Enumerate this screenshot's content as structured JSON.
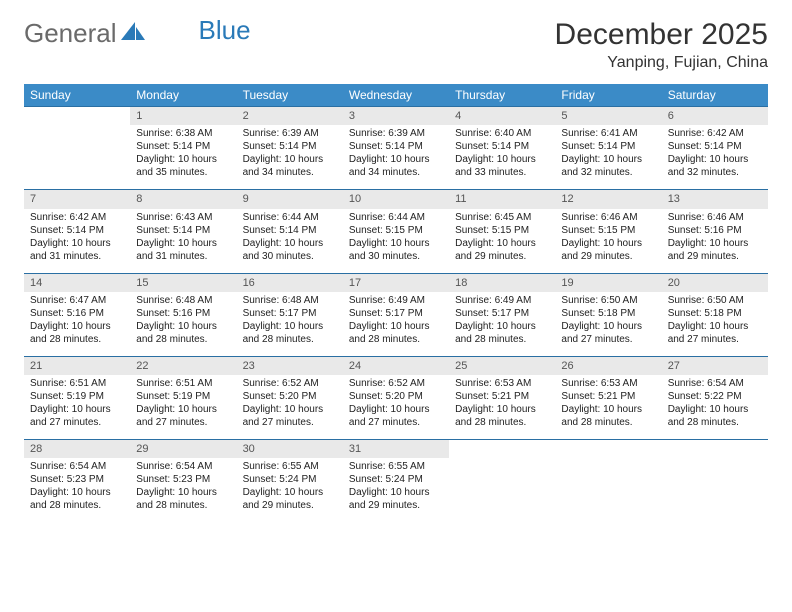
{
  "logo": {
    "text1": "General",
    "text2": "Blue",
    "shape_color": "#2a7ab8"
  },
  "header": {
    "month_title": "December 2025",
    "location": "Yanping, Fujian, China"
  },
  "colors": {
    "header_bg": "#3b8bc7",
    "header_text": "#ffffff",
    "row_border": "#2a6fa3",
    "daynum_bg": "#e9e9e9",
    "daynum_text": "#555555",
    "body_text": "#222222"
  },
  "day_names": [
    "Sunday",
    "Monday",
    "Tuesday",
    "Wednesday",
    "Thursday",
    "Friday",
    "Saturday"
  ],
  "weeks": [
    [
      {
        "n": "",
        "sr": "",
        "ss": "",
        "dl": ""
      },
      {
        "n": "1",
        "sr": "Sunrise: 6:38 AM",
        "ss": "Sunset: 5:14 PM",
        "dl": "Daylight: 10 hours and 35 minutes."
      },
      {
        "n": "2",
        "sr": "Sunrise: 6:39 AM",
        "ss": "Sunset: 5:14 PM",
        "dl": "Daylight: 10 hours and 34 minutes."
      },
      {
        "n": "3",
        "sr": "Sunrise: 6:39 AM",
        "ss": "Sunset: 5:14 PM",
        "dl": "Daylight: 10 hours and 34 minutes."
      },
      {
        "n": "4",
        "sr": "Sunrise: 6:40 AM",
        "ss": "Sunset: 5:14 PM",
        "dl": "Daylight: 10 hours and 33 minutes."
      },
      {
        "n": "5",
        "sr": "Sunrise: 6:41 AM",
        "ss": "Sunset: 5:14 PM",
        "dl": "Daylight: 10 hours and 32 minutes."
      },
      {
        "n": "6",
        "sr": "Sunrise: 6:42 AM",
        "ss": "Sunset: 5:14 PM",
        "dl": "Daylight: 10 hours and 32 minutes."
      }
    ],
    [
      {
        "n": "7",
        "sr": "Sunrise: 6:42 AM",
        "ss": "Sunset: 5:14 PM",
        "dl": "Daylight: 10 hours and 31 minutes."
      },
      {
        "n": "8",
        "sr": "Sunrise: 6:43 AM",
        "ss": "Sunset: 5:14 PM",
        "dl": "Daylight: 10 hours and 31 minutes."
      },
      {
        "n": "9",
        "sr": "Sunrise: 6:44 AM",
        "ss": "Sunset: 5:14 PM",
        "dl": "Daylight: 10 hours and 30 minutes."
      },
      {
        "n": "10",
        "sr": "Sunrise: 6:44 AM",
        "ss": "Sunset: 5:15 PM",
        "dl": "Daylight: 10 hours and 30 minutes."
      },
      {
        "n": "11",
        "sr": "Sunrise: 6:45 AM",
        "ss": "Sunset: 5:15 PM",
        "dl": "Daylight: 10 hours and 29 minutes."
      },
      {
        "n": "12",
        "sr": "Sunrise: 6:46 AM",
        "ss": "Sunset: 5:15 PM",
        "dl": "Daylight: 10 hours and 29 minutes."
      },
      {
        "n": "13",
        "sr": "Sunrise: 6:46 AM",
        "ss": "Sunset: 5:16 PM",
        "dl": "Daylight: 10 hours and 29 minutes."
      }
    ],
    [
      {
        "n": "14",
        "sr": "Sunrise: 6:47 AM",
        "ss": "Sunset: 5:16 PM",
        "dl": "Daylight: 10 hours and 28 minutes."
      },
      {
        "n": "15",
        "sr": "Sunrise: 6:48 AM",
        "ss": "Sunset: 5:16 PM",
        "dl": "Daylight: 10 hours and 28 minutes."
      },
      {
        "n": "16",
        "sr": "Sunrise: 6:48 AM",
        "ss": "Sunset: 5:17 PM",
        "dl": "Daylight: 10 hours and 28 minutes."
      },
      {
        "n": "17",
        "sr": "Sunrise: 6:49 AM",
        "ss": "Sunset: 5:17 PM",
        "dl": "Daylight: 10 hours and 28 minutes."
      },
      {
        "n": "18",
        "sr": "Sunrise: 6:49 AM",
        "ss": "Sunset: 5:17 PM",
        "dl": "Daylight: 10 hours and 28 minutes."
      },
      {
        "n": "19",
        "sr": "Sunrise: 6:50 AM",
        "ss": "Sunset: 5:18 PM",
        "dl": "Daylight: 10 hours and 27 minutes."
      },
      {
        "n": "20",
        "sr": "Sunrise: 6:50 AM",
        "ss": "Sunset: 5:18 PM",
        "dl": "Daylight: 10 hours and 27 minutes."
      }
    ],
    [
      {
        "n": "21",
        "sr": "Sunrise: 6:51 AM",
        "ss": "Sunset: 5:19 PM",
        "dl": "Daylight: 10 hours and 27 minutes."
      },
      {
        "n": "22",
        "sr": "Sunrise: 6:51 AM",
        "ss": "Sunset: 5:19 PM",
        "dl": "Daylight: 10 hours and 27 minutes."
      },
      {
        "n": "23",
        "sr": "Sunrise: 6:52 AM",
        "ss": "Sunset: 5:20 PM",
        "dl": "Daylight: 10 hours and 27 minutes."
      },
      {
        "n": "24",
        "sr": "Sunrise: 6:52 AM",
        "ss": "Sunset: 5:20 PM",
        "dl": "Daylight: 10 hours and 27 minutes."
      },
      {
        "n": "25",
        "sr": "Sunrise: 6:53 AM",
        "ss": "Sunset: 5:21 PM",
        "dl": "Daylight: 10 hours and 28 minutes."
      },
      {
        "n": "26",
        "sr": "Sunrise: 6:53 AM",
        "ss": "Sunset: 5:21 PM",
        "dl": "Daylight: 10 hours and 28 minutes."
      },
      {
        "n": "27",
        "sr": "Sunrise: 6:54 AM",
        "ss": "Sunset: 5:22 PM",
        "dl": "Daylight: 10 hours and 28 minutes."
      }
    ],
    [
      {
        "n": "28",
        "sr": "Sunrise: 6:54 AM",
        "ss": "Sunset: 5:23 PM",
        "dl": "Daylight: 10 hours and 28 minutes."
      },
      {
        "n": "29",
        "sr": "Sunrise: 6:54 AM",
        "ss": "Sunset: 5:23 PM",
        "dl": "Daylight: 10 hours and 28 minutes."
      },
      {
        "n": "30",
        "sr": "Sunrise: 6:55 AM",
        "ss": "Sunset: 5:24 PM",
        "dl": "Daylight: 10 hours and 29 minutes."
      },
      {
        "n": "31",
        "sr": "Sunrise: 6:55 AM",
        "ss": "Sunset: 5:24 PM",
        "dl": "Daylight: 10 hours and 29 minutes."
      },
      {
        "n": "",
        "sr": "",
        "ss": "",
        "dl": ""
      },
      {
        "n": "",
        "sr": "",
        "ss": "",
        "dl": ""
      },
      {
        "n": "",
        "sr": "",
        "ss": "",
        "dl": ""
      }
    ]
  ]
}
